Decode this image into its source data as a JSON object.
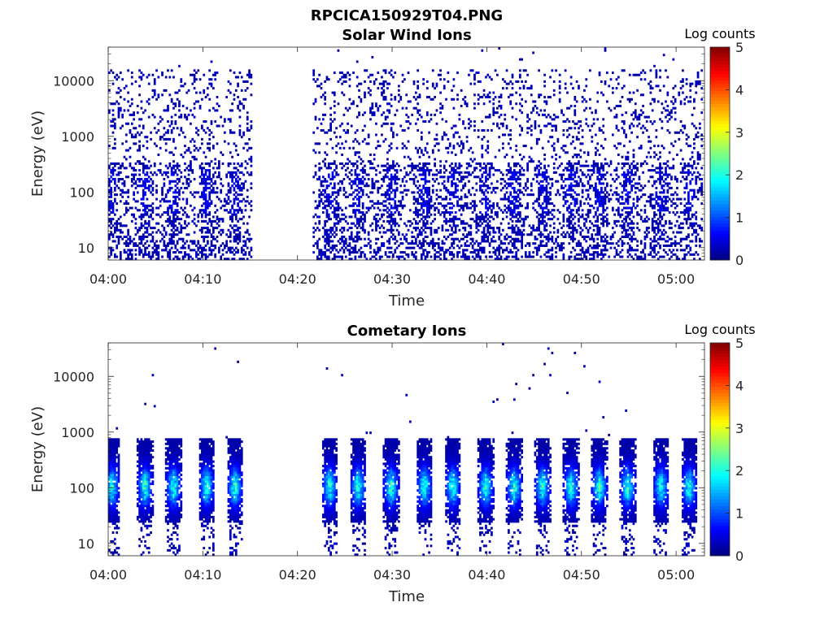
{
  "figure_title": "RPCICA150929T04.PNG",
  "chart_data": [
    {
      "type": "heatmap",
      "title": "Solar Wind Ions",
      "xlabel": "Time",
      "ylabel": "Energy (eV)",
      "y_scale": "log",
      "ylim_eV": [
        6,
        40000
      ],
      "x_range_minutes_after_0400": [
        0,
        63
      ],
      "x_ticks": [
        "04:00",
        "04:10",
        "04:20",
        "04:30",
        "04:40",
        "04:50",
        "05:00"
      ],
      "y_ticks": [
        "10",
        "100",
        "1000",
        "10000"
      ],
      "colorbar_label": "Log counts",
      "colorbar_range": [
        0,
        5
      ],
      "colorbar_ticks": [
        "0",
        "1",
        "2",
        "3",
        "4",
        "5"
      ],
      "data_gap_minutes": [
        15,
        21.5
      ],
      "pattern": "sparse low counts (log 0-1) across 10-10000 eV, denser near 10-300 eV, periodic enhancements every ~3 min",
      "peak_times_minutes": [
        0.3,
        3.8,
        6.8,
        10.3,
        13.3,
        23.3,
        26.3,
        29.8,
        33.3,
        36.3,
        39.8,
        42.8,
        45.8,
        48.8,
        51.8,
        54.8,
        58.3,
        61.3
      ]
    },
    {
      "type": "heatmap",
      "title": "Cometary Ions",
      "xlabel": "Time",
      "ylabel": "Energy (eV)",
      "y_scale": "log",
      "ylim_eV": [
        6,
        40000
      ],
      "x_range_minutes_after_0400": [
        0,
        63
      ],
      "x_ticks": [
        "04:00",
        "04:10",
        "04:20",
        "04:30",
        "04:40",
        "04:50",
        "05:00"
      ],
      "y_ticks": [
        "10",
        "100",
        "1000",
        "10000"
      ],
      "colorbar_label": "Log counts",
      "colorbar_range": [
        0,
        5
      ],
      "colorbar_ticks": [
        "0",
        "1",
        "2",
        "3",
        "4",
        "5"
      ],
      "data_gap_minutes": [
        15,
        21.5
      ],
      "pattern": "periodic bursts centered ~100 eV (range ~30-700 eV) reaching log counts ~2.3, spaced ~3 min",
      "peak_times_minutes": [
        0.3,
        3.8,
        6.8,
        10.3,
        13.3,
        23.3,
        26.3,
        29.8,
        33.3,
        36.3,
        39.8,
        42.8,
        45.8,
        48.8,
        51.8,
        54.8,
        58.3,
        61.3
      ]
    }
  ]
}
